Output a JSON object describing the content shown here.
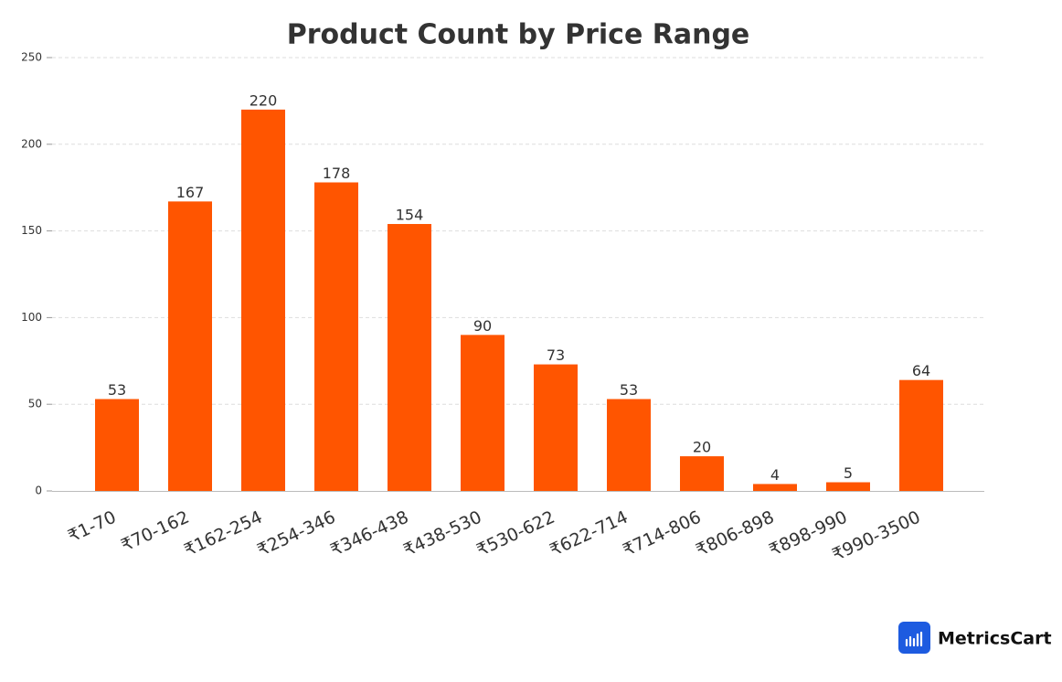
{
  "chart_data": {
    "type": "bar",
    "title": "Product Count by Price Range",
    "categories": [
      "₹1-70",
      "₹70-162",
      "₹162-254",
      "₹254-346",
      "₹346-438",
      "₹438-530",
      "₹530-622",
      "₹622-714",
      "₹714-806",
      "₹806-898",
      "₹898-990",
      "₹990-3500"
    ],
    "values": [
      53,
      167,
      220,
      178,
      154,
      90,
      73,
      53,
      20,
      4,
      5,
      64
    ],
    "color": "#ff5500",
    "ylim": [
      0,
      250
    ],
    "yticks": [
      0,
      50,
      100,
      150,
      200,
      250
    ],
    "grid": true
  },
  "brand": "MetricsCart"
}
